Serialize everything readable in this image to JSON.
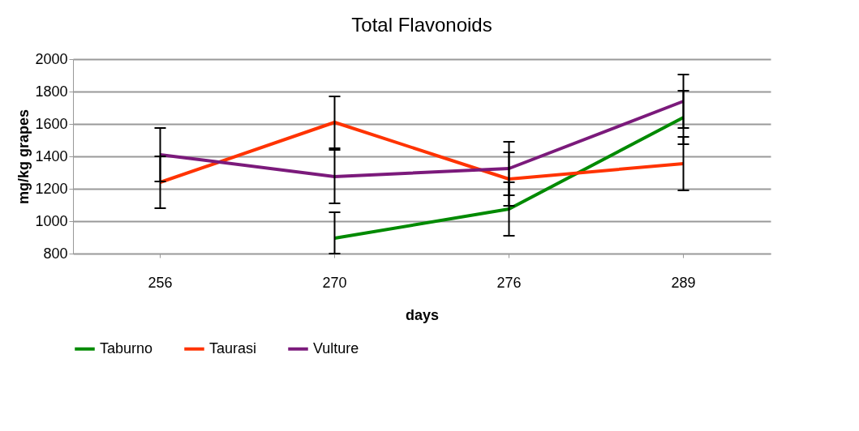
{
  "chart_data": {
    "type": "line",
    "title": "Total Flavonoids",
    "xlabel": "days",
    "ylabel": "mg/kg grapes",
    "categories": [
      "256",
      "270",
      "276",
      "289"
    ],
    "series": [
      {
        "name": "Taburno",
        "color": "#008a00",
        "values": [
          null,
          895,
          1075,
          1640
        ],
        "errors": [
          null,
          [
            800,
            1055
          ],
          165,
          165
        ]
      },
      {
        "name": "Taurasi",
        "color": "#ff3300",
        "values": [
          1240,
          1610,
          1260,
          1355
        ],
        "errors": [
          160,
          160,
          165,
          165
        ]
      },
      {
        "name": "Vulture",
        "color": "#7b1a7b",
        "values": [
          1410,
          1275,
          1325,
          1740
        ],
        "errors": [
          165,
          165,
          165,
          165
        ]
      }
    ],
    "ylim": [
      800,
      2000
    ],
    "yticks": [
      800,
      1000,
      1200,
      1400,
      1600,
      1800,
      2000
    ],
    "grid": "y",
    "legend": "bottom",
    "marker": "none",
    "line_style": "solid"
  }
}
